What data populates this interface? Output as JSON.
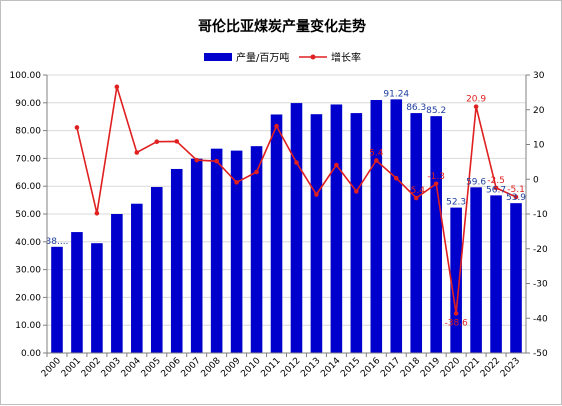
{
  "chart_data": {
    "type": "bar",
    "title": "哥伦比亚煤炭产量变化走势",
    "categories": [
      "2000",
      "2001",
      "2002",
      "2003",
      "2004",
      "2005",
      "2006",
      "2007",
      "2008",
      "2009",
      "2010",
      "2011",
      "2012",
      "2013",
      "2014",
      "2015",
      "2016",
      "2017",
      "2018",
      "2019",
      "2020",
      "2021",
      "2022",
      "2023"
    ],
    "series": [
      {
        "name": "产量/百万吨",
        "axis": "left",
        "color": "#0000CC",
        "values": [
          38.2,
          43.5,
          39.5,
          50.0,
          53.7,
          59.7,
          66.2,
          69.9,
          73.5,
          72.8,
          74.4,
          85.8,
          89.9,
          85.9,
          89.4,
          86.3,
          91.0,
          91.24,
          86.3,
          85.2,
          52.3,
          59.6,
          56.7,
          53.9
        ]
      },
      {
        "name": "增长率",
        "axis": "right",
        "type": "line",
        "color": "#E02020",
        "values": [
          null,
          14.9,
          -9.8,
          26.6,
          7.7,
          10.8,
          10.9,
          5.5,
          5.2,
          -0.9,
          2.1,
          15.3,
          4.8,
          -4.4,
          4.1,
          -3.5,
          5.4,
          0.3,
          -5.4,
          -1.3,
          -38.6,
          20.9,
          -2.5,
          -5.1
        ]
      }
    ],
    "y_left_ticks": [
      "0.00",
      "10.00",
      "20.00",
      "30.00",
      "40.00",
      "50.00",
      "60.00",
      "70.00",
      "80.00",
      "90.00",
      "100.00"
    ],
    "y_right_ticks": [
      "-50",
      "-40",
      "-30",
      "-20",
      "-10",
      "0",
      "10",
      "20",
      "30"
    ],
    "ylim_left": [
      0,
      100
    ],
    "ylim_right": [
      -50,
      30
    ],
    "bar_labels": [
      {
        "index": 0,
        "text": "38...."
      },
      {
        "index": 17,
        "text": "91.24"
      },
      {
        "index": 18,
        "text": "86.3"
      },
      {
        "index": 19,
        "text": "85.2"
      },
      {
        "index": 20,
        "text": "52.3"
      },
      {
        "index": 21,
        "text": "59.6"
      },
      {
        "index": 22,
        "text": "56.7"
      },
      {
        "index": 23,
        "text": "53.9"
      }
    ],
    "line_labels": [
      {
        "index": 16,
        "text": "5.4"
      },
      {
        "index": 18,
        "text": "-5.4"
      },
      {
        "index": 19,
        "text": "-1.3"
      },
      {
        "index": 20,
        "text": "-38.6"
      },
      {
        "index": 21,
        "text": "20.9"
      },
      {
        "index": 22,
        "text": "-2.5"
      },
      {
        "index": 23,
        "text": "-5.1"
      }
    ],
    "grid": true,
    "legend_position": "top"
  }
}
